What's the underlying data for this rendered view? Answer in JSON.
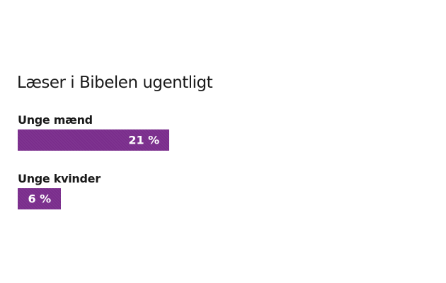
{
  "chart_data": {
    "type": "bar",
    "title": "Læser i Bibelen ugentligt",
    "categories": [
      "Unge mænd",
      "Unge kvinder"
    ],
    "values": [
      21,
      6
    ],
    "value_labels": [
      "21 %",
      "6 %"
    ],
    "orientation": "horizontal",
    "grid": false,
    "bar_color": "#7a2d8c"
  }
}
